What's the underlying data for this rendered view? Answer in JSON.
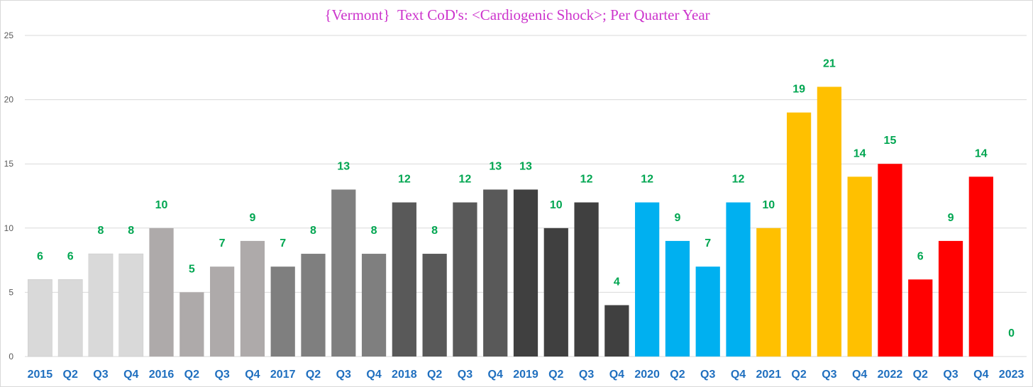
{
  "chart_data": {
    "type": "bar",
    "title": "{Vermont}  Text CoD's: <Cardiogenic Shock>; Per Quarter Year",
    "xlabel": "",
    "ylabel": "",
    "ylim": [
      0,
      25
    ],
    "yticks": [
      0,
      5,
      10,
      15,
      20,
      25
    ],
    "grid": true,
    "legend": "none",
    "categories": [
      "2015",
      "Q2",
      "Q3",
      "Q4",
      "2016",
      "Q2",
      "Q3",
      "Q4",
      "2017",
      "Q2",
      "Q3",
      "Q4",
      "2018",
      "Q2",
      "Q3",
      "Q4",
      "2019",
      "Q2",
      "Q3",
      "Q4",
      "2020",
      "Q2",
      "Q3",
      "Q4",
      "2021",
      "Q2",
      "Q3",
      "Q4",
      "2022",
      "Q2",
      "Q3",
      "Q4",
      "2023"
    ],
    "values": [
      6,
      6,
      8,
      8,
      10,
      5,
      7,
      9,
      7,
      8,
      13,
      8,
      12,
      8,
      12,
      13,
      13,
      10,
      12,
      4,
      12,
      9,
      7,
      12,
      10,
      19,
      21,
      14,
      15,
      6,
      9,
      14,
      0
    ],
    "colors": [
      "#d9d9d9",
      "#d9d9d9",
      "#d9d9d9",
      "#d9d9d9",
      "#aeaaaa",
      "#aeaaaa",
      "#aeaaaa",
      "#aeaaaa",
      "#7f7f7f",
      "#7f7f7f",
      "#7f7f7f",
      "#7f7f7f",
      "#595959",
      "#595959",
      "#595959",
      "#595959",
      "#404040",
      "#404040",
      "#404040",
      "#404040",
      "#00b0f0",
      "#00b0f0",
      "#00b0f0",
      "#00b0f0",
      "#ffc000",
      "#ffc000",
      "#ffc000",
      "#ffc000",
      "#ff0000",
      "#ff0000",
      "#ff0000",
      "#ff0000",
      "#ff0000"
    ],
    "data_label_color": "#00a651",
    "tick_label_color": "#1f6fbf",
    "title_color": "#cc33cc"
  }
}
